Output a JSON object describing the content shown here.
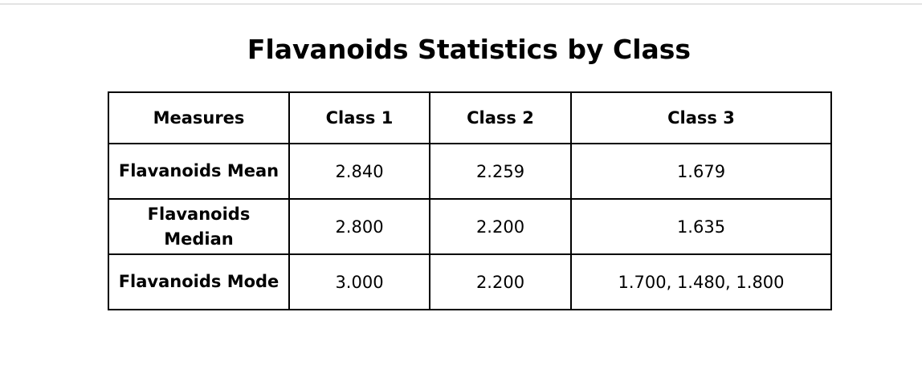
{
  "title": "Flavanoids Statistics by Class",
  "table": {
    "headers": [
      "Measures",
      "Class 1",
      "Class 2",
      "Class 3"
    ],
    "rows": [
      {
        "measure": "Flavanoids Mean",
        "values": [
          "2.840",
          "2.259",
          "1.679"
        ]
      },
      {
        "measure": "Flavanoids Median",
        "values": [
          "2.800",
          "2.200",
          "1.635"
        ]
      },
      {
        "measure": "Flavanoids Mode",
        "values": [
          "3.000",
          "2.200",
          "1.700, 1.480, 1.800"
        ]
      }
    ]
  }
}
